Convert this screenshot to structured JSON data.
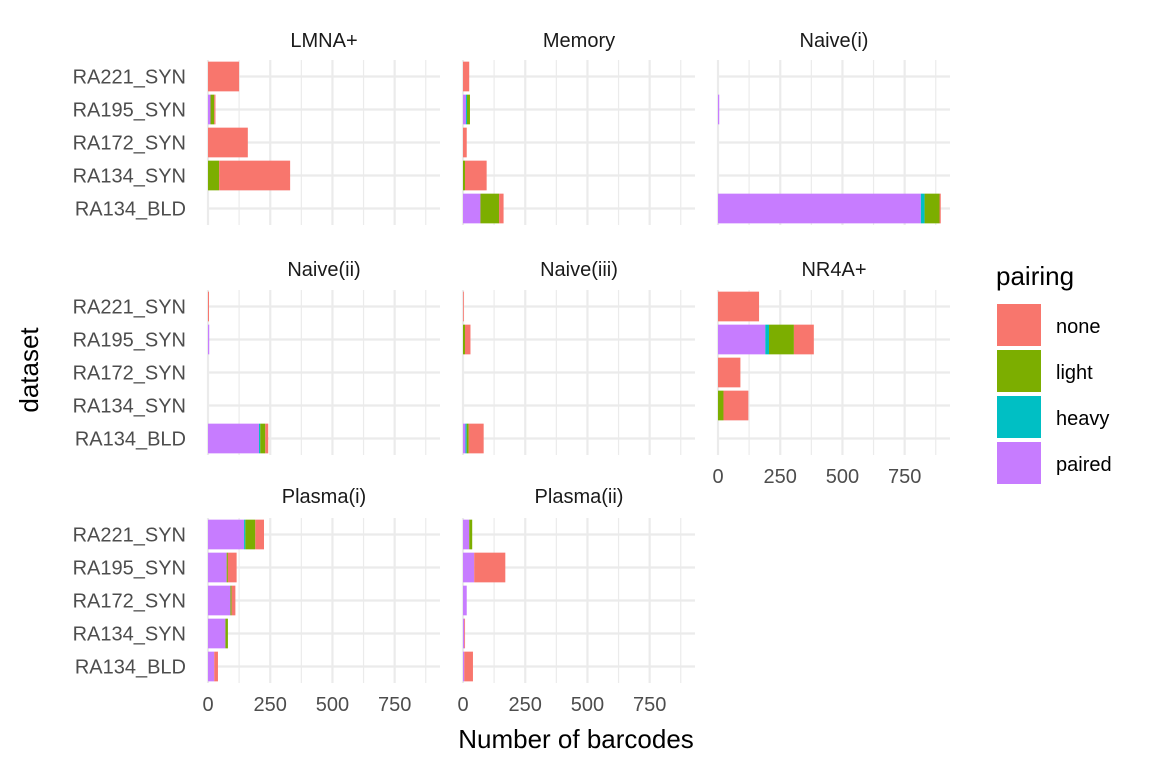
{
  "chart_data": {
    "type": "bar",
    "orientation": "horizontal",
    "stacked": true,
    "xlabel": "Number of barcodes",
    "ylabel": "dataset",
    "xlim": [
      0,
      900
    ],
    "xticks": [
      0,
      250,
      500,
      750
    ],
    "xtick_labels": [
      "0",
      "250",
      "500",
      "750"
    ],
    "grid": true,
    "legend_position": "right",
    "legend": {
      "title": "pairing",
      "entries": [
        {
          "name": "none",
          "color": "#F8766D"
        },
        {
          "name": "light",
          "color": "#7CAE00"
        },
        {
          "name": "heavy",
          "color": "#00BFC4"
        },
        {
          "name": "paired",
          "color": "#C77CFF"
        }
      ]
    },
    "stack_order": [
      "paired",
      "heavy",
      "light",
      "none"
    ],
    "categories": [
      "RA221_SYN",
      "RA195_SYN",
      "RA172_SYN",
      "RA134_SYN",
      "RA134_BLD"
    ],
    "facets": [
      {
        "title": "LMNA+",
        "values": {
          "RA221_SYN": {
            "paired": 0,
            "heavy": 0,
            "light": 0,
            "none": 125
          },
          "RA195_SYN": {
            "paired": 10,
            "heavy": 0,
            "light": 15,
            "none": 5
          },
          "RA172_SYN": {
            "paired": 0,
            "heavy": 0,
            "light": 0,
            "none": 160
          },
          "RA134_SYN": {
            "paired": 0,
            "heavy": 0,
            "light": 45,
            "none": 285
          },
          "RA134_BLD": {
            "paired": 0,
            "heavy": 0,
            "light": 0,
            "none": 0
          }
        }
      },
      {
        "title": "Memory",
        "values": {
          "RA221_SYN": {
            "paired": 0,
            "heavy": 0,
            "light": 0,
            "none": 25
          },
          "RA195_SYN": {
            "paired": 12,
            "heavy": 4,
            "light": 12,
            "none": 0
          },
          "RA172_SYN": {
            "paired": 0,
            "heavy": 0,
            "light": 0,
            "none": 15
          },
          "RA134_SYN": {
            "paired": 0,
            "heavy": 0,
            "light": 8,
            "none": 87
          },
          "RA134_BLD": {
            "paired": 70,
            "heavy": 0,
            "light": 75,
            "none": 18
          }
        }
      },
      {
        "title": "Naive(i)",
        "values": {
          "RA221_SYN": {
            "paired": 0,
            "heavy": 0,
            "light": 0,
            "none": 0
          },
          "RA195_SYN": {
            "paired": 5,
            "heavy": 0,
            "light": 0,
            "none": 0
          },
          "RA172_SYN": {
            "paired": 0,
            "heavy": 0,
            "light": 0,
            "none": 0
          },
          "RA134_SYN": {
            "paired": 0,
            "heavy": 0,
            "light": 0,
            "none": 0
          },
          "RA134_BLD": {
            "paired": 815,
            "heavy": 15,
            "light": 60,
            "none": 5
          }
        }
      },
      {
        "title": "Naive(ii)",
        "values": {
          "RA221_SYN": {
            "paired": 0,
            "heavy": 0,
            "light": 0,
            "none": 4
          },
          "RA195_SYN": {
            "paired": 5,
            "heavy": 0,
            "light": 0,
            "none": 0
          },
          "RA172_SYN": {
            "paired": 0,
            "heavy": 0,
            "light": 0,
            "none": 0
          },
          "RA134_SYN": {
            "paired": 0,
            "heavy": 0,
            "light": 0,
            "none": 0
          },
          "RA134_BLD": {
            "paired": 205,
            "heavy": 5,
            "light": 20,
            "none": 12
          }
        }
      },
      {
        "title": "Naive(iii)",
        "values": {
          "RA221_SYN": {
            "paired": 0,
            "heavy": 0,
            "light": 0,
            "none": 2
          },
          "RA195_SYN": {
            "paired": 0,
            "heavy": 0,
            "light": 8,
            "none": 22
          },
          "RA172_SYN": {
            "paired": 0,
            "heavy": 0,
            "light": 0,
            "none": 0
          },
          "RA134_SYN": {
            "paired": 0,
            "heavy": 0,
            "light": 0,
            "none": 0
          },
          "RA134_BLD": {
            "paired": 10,
            "heavy": 5,
            "light": 8,
            "none": 60
          }
        }
      },
      {
        "title": "NR4A+",
        "values": {
          "RA221_SYN": {
            "paired": 0,
            "heavy": 0,
            "light": 0,
            "none": 165
          },
          "RA195_SYN": {
            "paired": 190,
            "heavy": 15,
            "light": 100,
            "none": 80
          },
          "RA172_SYN": {
            "paired": 0,
            "heavy": 0,
            "light": 0,
            "none": 90
          },
          "RA134_SYN": {
            "paired": 0,
            "heavy": 0,
            "light": 22,
            "none": 100
          },
          "RA134_BLD": {
            "paired": 0,
            "heavy": 0,
            "light": 0,
            "none": 0
          }
        }
      },
      {
        "title": "Plasma(i)",
        "values": {
          "RA221_SYN": {
            "paired": 145,
            "heavy": 5,
            "light": 40,
            "none": 35
          },
          "RA195_SYN": {
            "paired": 75,
            "heavy": 0,
            "light": 5,
            "none": 35
          },
          "RA172_SYN": {
            "paired": 90,
            "heavy": 0,
            "light": 5,
            "none": 15
          },
          "RA134_SYN": {
            "paired": 70,
            "heavy": 0,
            "light": 10,
            "none": 0
          },
          "RA134_BLD": {
            "paired": 25,
            "heavy": 0,
            "light": 0,
            "none": 15
          }
        }
      },
      {
        "title": "Plasma(ii)",
        "values": {
          "RA221_SYN": {
            "paired": 25,
            "heavy": 0,
            "light": 12,
            "none": 0
          },
          "RA195_SYN": {
            "paired": 45,
            "heavy": 0,
            "light": 0,
            "none": 125
          },
          "RA172_SYN": {
            "paired": 15,
            "heavy": 0,
            "light": 0,
            "none": 0
          },
          "RA134_SYN": {
            "paired": 5,
            "heavy": 0,
            "light": 0,
            "none": 3
          },
          "RA134_BLD": {
            "paired": 5,
            "heavy": 0,
            "light": 0,
            "none": 35
          }
        }
      }
    ]
  }
}
